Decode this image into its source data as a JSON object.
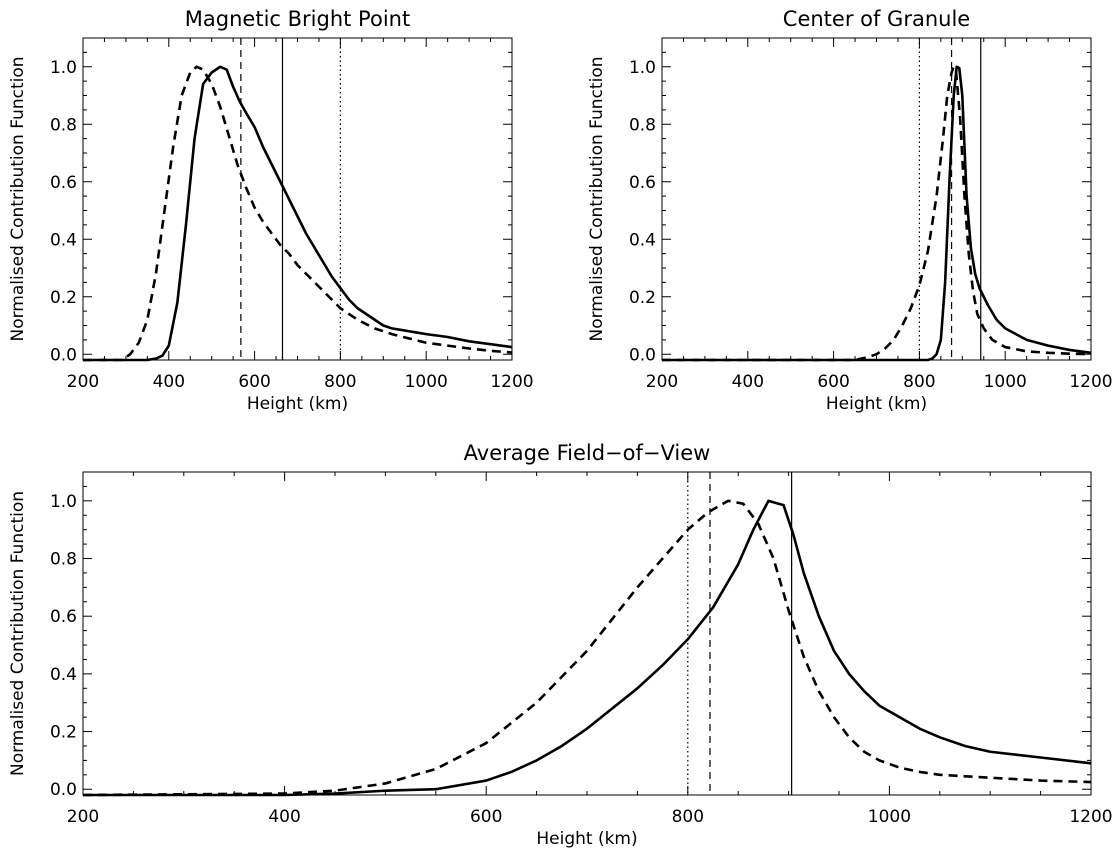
{
  "chart_data": [
    {
      "type": "line",
      "title": "Magnetic Bright Point",
      "xlabel": "Height (km)",
      "ylabel": "Normalised Contribution Function",
      "xlim": [
        200,
        1200
      ],
      "ylim": [
        -0.02,
        1.1
      ],
      "xticks": [
        200,
        400,
        600,
        800,
        1000,
        1200
      ],
      "xtick_labels": [
        "200",
        "400",
        "600",
        "800",
        "1000",
        "1200"
      ],
      "yticks": [
        0.0,
        0.2,
        0.4,
        0.6,
        0.8,
        1.0
      ],
      "ytick_labels": [
        "0.0",
        "0.2",
        "0.4",
        "0.6",
        "0.8",
        "1.0"
      ],
      "grid": false,
      "series": [
        {
          "style": "solid",
          "color": "#000000",
          "x": [
            200,
            350,
            370,
            385,
            400,
            420,
            440,
            460,
            480,
            500,
            520,
            535,
            550,
            565,
            580,
            600,
            620,
            640,
            660,
            680,
            700,
            720,
            740,
            760,
            780,
            800,
            820,
            840,
            860,
            880,
            900,
            920,
            940,
            960,
            980,
            1000,
            1050,
            1100,
            1150,
            1200
          ],
          "y": [
            -0.02,
            -0.02,
            -0.015,
            -0.005,
            0.03,
            0.18,
            0.45,
            0.75,
            0.94,
            0.98,
            1.0,
            0.99,
            0.93,
            0.88,
            0.84,
            0.79,
            0.72,
            0.66,
            0.6,
            0.54,
            0.48,
            0.42,
            0.37,
            0.32,
            0.27,
            0.23,
            0.19,
            0.16,
            0.14,
            0.12,
            0.1,
            0.09,
            0.085,
            0.08,
            0.075,
            0.07,
            0.06,
            0.045,
            0.035,
            0.025
          ]
        },
        {
          "style": "dashed",
          "color": "#000000",
          "x": [
            200,
            290,
            310,
            330,
            350,
            370,
            390,
            410,
            430,
            450,
            465,
            480,
            500,
            520,
            540,
            560,
            580,
            600,
            620,
            640,
            660,
            680,
            700,
            720,
            740,
            760,
            780,
            800,
            840,
            880,
            920,
            960,
            1000,
            1050,
            1100,
            1150,
            1200
          ],
          "y": [
            -0.02,
            -0.02,
            0.0,
            0.04,
            0.12,
            0.28,
            0.5,
            0.72,
            0.9,
            0.98,
            1.0,
            0.99,
            0.94,
            0.86,
            0.76,
            0.66,
            0.58,
            0.51,
            0.46,
            0.42,
            0.38,
            0.35,
            0.31,
            0.28,
            0.25,
            0.22,
            0.19,
            0.16,
            0.12,
            0.09,
            0.07,
            0.055,
            0.04,
            0.03,
            0.02,
            0.012,
            0.006
          ]
        }
      ],
      "vlines": [
        {
          "x": 568,
          "style": "dashed"
        },
        {
          "x": 665,
          "style": "solid"
        },
        {
          "x": 800,
          "style": "dotted"
        }
      ]
    },
    {
      "type": "line",
      "title": "Center of Granule",
      "xlabel": "Height (km)",
      "ylabel": "Normalised Contribution Function",
      "xlim": [
        200,
        1200
      ],
      "ylim": [
        -0.02,
        1.1
      ],
      "xticks": [
        200,
        400,
        600,
        800,
        1000,
        1200
      ],
      "xtick_labels": [
        "200",
        "400",
        "600",
        "800",
        "1000",
        "1200"
      ],
      "yticks": [
        0.0,
        0.2,
        0.4,
        0.6,
        0.8,
        1.0
      ],
      "ytick_labels": [
        "0.0",
        "0.2",
        "0.4",
        "0.6",
        "0.8",
        "1.0"
      ],
      "grid": false,
      "series": [
        {
          "style": "solid",
          "color": "#000000",
          "x": [
            200,
            820,
            830,
            840,
            850,
            860,
            870,
            880,
            887,
            893,
            900,
            910,
            920,
            930,
            940,
            950,
            960,
            980,
            1000,
            1050,
            1100,
            1150,
            1200
          ],
          "y": [
            -0.02,
            -0.02,
            -0.015,
            0.0,
            0.05,
            0.25,
            0.6,
            0.9,
            1.0,
            0.995,
            0.9,
            0.55,
            0.37,
            0.28,
            0.23,
            0.2,
            0.17,
            0.12,
            0.09,
            0.05,
            0.03,
            0.015,
            0.005
          ]
        },
        {
          "style": "dashed",
          "color": "#000000",
          "x": [
            200,
            650,
            680,
            700,
            720,
            740,
            760,
            780,
            800,
            820,
            840,
            855,
            865,
            875,
            880,
            885,
            895,
            905,
            915,
            925,
            935,
            950,
            970,
            1000,
            1050,
            1100,
            1150,
            1200
          ],
          "y": [
            -0.02,
            -0.02,
            -0.01,
            0.0,
            0.02,
            0.05,
            0.1,
            0.16,
            0.24,
            0.36,
            0.55,
            0.75,
            0.9,
            0.98,
            1.0,
            0.99,
            0.82,
            0.55,
            0.35,
            0.22,
            0.14,
            0.09,
            0.05,
            0.025,
            0.01,
            0.005,
            0.002,
            0.0
          ]
        }
      ],
      "vlines": [
        {
          "x": 800,
          "style": "dotted"
        },
        {
          "x": 875,
          "style": "dashed"
        },
        {
          "x": 943,
          "style": "solid"
        }
      ]
    },
    {
      "type": "line",
      "title": "Average Field−of−View",
      "xlabel": "Height (km)",
      "ylabel": "Normalised Contribution Function",
      "xlim": [
        200,
        1200
      ],
      "ylim": [
        -0.02,
        1.1
      ],
      "xticks": [
        200,
        400,
        600,
        800,
        1000,
        1200
      ],
      "xtick_labels": [
        "200",
        "400",
        "600",
        "800",
        "1000",
        "1200"
      ],
      "yticks": [
        0.0,
        0.2,
        0.4,
        0.6,
        0.8,
        1.0
      ],
      "ytick_labels": [
        "0.0",
        "0.2",
        "0.4",
        "0.6",
        "0.8",
        "1.0"
      ],
      "grid": false,
      "series": [
        {
          "style": "solid",
          "color": "#000000",
          "x": [
            200,
            400,
            450,
            500,
            550,
            600,
            625,
            650,
            675,
            700,
            725,
            750,
            775,
            800,
            825,
            850,
            865,
            880,
            895,
            905,
            915,
            930,
            945,
            960,
            975,
            990,
            1010,
            1030,
            1050,
            1075,
            1100,
            1150,
            1200
          ],
          "y": [
            -0.02,
            -0.02,
            -0.015,
            -0.005,
            0.0,
            0.03,
            0.06,
            0.1,
            0.15,
            0.21,
            0.28,
            0.35,
            0.43,
            0.52,
            0.63,
            0.78,
            0.9,
            1.0,
            0.985,
            0.88,
            0.75,
            0.6,
            0.48,
            0.4,
            0.34,
            0.29,
            0.25,
            0.21,
            0.18,
            0.15,
            0.13,
            0.11,
            0.09
          ]
        },
        {
          "style": "dashed",
          "color": "#000000",
          "x": [
            200,
            400,
            450,
            500,
            550,
            600,
            650,
            700,
            750,
            775,
            800,
            820,
            840,
            855,
            870,
            885,
            900,
            915,
            930,
            945,
            960,
            975,
            990,
            1010,
            1030,
            1050,
            1100,
            1150,
            1200
          ],
          "y": [
            -0.02,
            -0.015,
            -0.005,
            0.02,
            0.07,
            0.16,
            0.3,
            0.48,
            0.7,
            0.8,
            0.9,
            0.96,
            1.0,
            0.99,
            0.92,
            0.8,
            0.62,
            0.46,
            0.34,
            0.25,
            0.18,
            0.13,
            0.1,
            0.075,
            0.06,
            0.05,
            0.04,
            0.03,
            0.025
          ]
        }
      ],
      "vlines": [
        {
          "x": 800,
          "style": "dotted"
        },
        {
          "x": 822,
          "style": "dashed"
        },
        {
          "x": 903,
          "style": "solid"
        }
      ]
    }
  ]
}
